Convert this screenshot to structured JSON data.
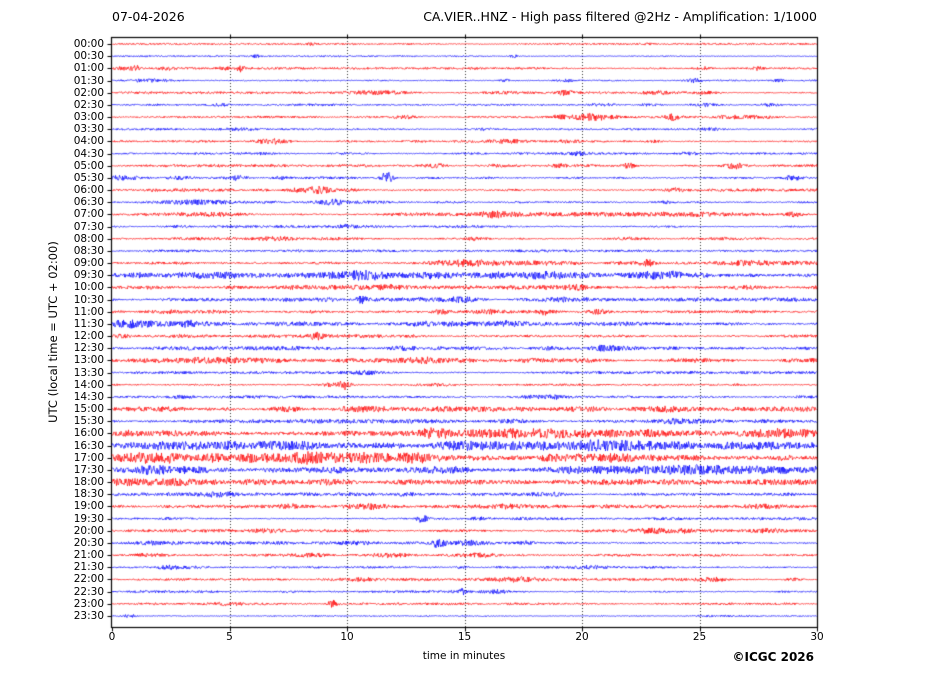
{
  "header": {
    "title_left": "07-04-2026",
    "title_right": "CA.VIER..HNZ - High pass filtered @2Hz - Amplification: 1/1000"
  },
  "axes": {
    "y_label": "UTC (local time = UTC + 02:00)",
    "x_label": "time in minutes",
    "x_ticks": [
      0,
      5,
      10,
      15,
      20,
      25,
      30
    ],
    "x_range": [
      0,
      30
    ],
    "gridlines_min": [
      5,
      10,
      15,
      20,
      25
    ]
  },
  "footer": {
    "copyright": "©ICGC 2026"
  },
  "colors": {
    "trace_red": "#ff0000",
    "trace_blue": "#0000ff",
    "grid": "rgba(0,0,0,0.8)",
    "frame": "#000000"
  },
  "chart_data": {
    "type": "line",
    "subtype": "helicorder-dayplot",
    "title": "CA.VIER..HNZ - High pass filtered @2Hz - Amplification: 1/1000",
    "date": "07-04-2026",
    "xlabel": "time in minutes",
    "ylabel": "UTC (local time = UTC + 02:00)",
    "minutes_per_row": 30,
    "x_range_minutes": [
      0,
      30
    ],
    "grid": "vertical dotted lines every 5 minutes",
    "legend": "none",
    "row_color_rule": "alternating red/blue per half-hour trace",
    "events_format": "[minute, peak_amplitude_px, spindle_sigma_min]",
    "rows": [
      {
        "time": "00:00",
        "color": "red",
        "base_amp": 0.5,
        "events": [
          [
            8.5,
            0.9,
            0.2
          ],
          [
            22.9,
            0.9,
            0.2
          ]
        ]
      },
      {
        "time": "00:30",
        "color": "blue",
        "base_amp": 0.5,
        "events": [
          [
            6.1,
            1.2,
            0.15
          ],
          [
            17.1,
            1.8,
            0.12
          ]
        ]
      },
      {
        "time": "01:00",
        "color": "red",
        "base_amp": 0.65,
        "events": [
          [
            0.5,
            1.6,
            0.3
          ],
          [
            1.0,
            3.0,
            0.12
          ],
          [
            2.3,
            1.5,
            0.3
          ],
          [
            4.8,
            1.2,
            0.2
          ],
          [
            5.5,
            3.2,
            0.12
          ],
          [
            25.2,
            1.3,
            0.2
          ],
          [
            27.5,
            1.6,
            0.15
          ]
        ]
      },
      {
        "time": "01:30",
        "color": "blue",
        "base_amp": 0.65,
        "events": [
          [
            1.5,
            1.5,
            0.6
          ],
          [
            16.7,
            1.2,
            0.2
          ],
          [
            19.3,
            1.5,
            0.25
          ],
          [
            24.8,
            1.9,
            0.2
          ],
          [
            28.4,
            1.3,
            0.2
          ]
        ]
      },
      {
        "time": "02:00",
        "color": "red",
        "base_amp": 0.65,
        "events": [
          [
            11.5,
            1.8,
            0.8
          ],
          [
            16.5,
            1.2,
            0.8
          ],
          [
            19.3,
            2.2,
            0.25
          ],
          [
            23.2,
            1.4,
            0.4
          ],
          [
            25.2,
            1.3,
            0.3
          ]
        ]
      },
      {
        "time": "02:30",
        "color": "blue",
        "base_amp": 0.65,
        "events": [
          [
            4.6,
            1.3,
            0.25
          ],
          [
            20.8,
            1.5,
            0.4
          ],
          [
            22.8,
            1.2,
            0.3
          ],
          [
            25.2,
            1.4,
            0.4
          ],
          [
            28.0,
            1.4,
            0.4
          ]
        ]
      },
      {
        "time": "03:00",
        "color": "red",
        "base_amp": 0.7,
        "events": [
          [
            12.5,
            1.2,
            0.3
          ],
          [
            19.0,
            1.3,
            0.3
          ],
          [
            20.4,
            2.8,
            0.7
          ],
          [
            23.8,
            3.2,
            0.2
          ],
          [
            27.0,
            1.5,
            0.8
          ]
        ]
      },
      {
        "time": "03:30",
        "color": "blue",
        "base_amp": 0.6,
        "events": [
          [
            5.4,
            1.1,
            0.4
          ],
          [
            16.0,
            1.0,
            0.4
          ],
          [
            25.5,
            1.0,
            0.3
          ]
        ]
      },
      {
        "time": "04:00",
        "color": "red",
        "base_amp": 0.7,
        "events": [
          [
            6.9,
            2.4,
            0.55
          ],
          [
            16.8,
            1.3,
            0.6
          ],
          [
            19.5,
            1.3,
            0.4
          ],
          [
            23.0,
            1.1,
            0.3
          ]
        ]
      },
      {
        "time": "04:30",
        "color": "blue",
        "base_amp": 0.65,
        "events": [
          [
            6.5,
            1.0,
            0.4
          ],
          [
            19.8,
            1.4,
            0.3
          ],
          [
            24.5,
            1.2,
            0.3
          ]
        ]
      },
      {
        "time": "05:00",
        "color": "red",
        "base_amp": 0.75,
        "events": [
          [
            13.7,
            2.2,
            0.35
          ],
          [
            16.4,
            1.4,
            0.3
          ],
          [
            19.0,
            1.4,
            0.3
          ],
          [
            22.0,
            2.6,
            0.2
          ],
          [
            26.5,
            3.0,
            0.35
          ]
        ]
      },
      {
        "time": "05:30",
        "color": "blue",
        "base_amp": 0.95,
        "events": [
          [
            0.5,
            2.2,
            0.5
          ],
          [
            3.0,
            1.4,
            0.5
          ],
          [
            5.3,
            2.2,
            0.3
          ],
          [
            7.2,
            1.4,
            0.3
          ],
          [
            11.7,
            6.5,
            0.18
          ],
          [
            29.0,
            2.0,
            0.3
          ]
        ]
      },
      {
        "time": "06:00",
        "color": "red",
        "base_amp": 0.85,
        "events": [
          [
            8.4,
            2.8,
            0.5
          ],
          [
            9.1,
            2.0,
            0.3
          ],
          [
            10.2,
            1.3,
            0.3
          ],
          [
            24.0,
            1.2,
            0.3
          ]
        ]
      },
      {
        "time": "06:30",
        "color": "blue",
        "base_amp": 0.85,
        "events": [
          [
            3.2,
            1.6,
            1.2
          ],
          [
            9.4,
            1.8,
            0.5
          ],
          [
            23.5,
            1.3,
            0.3
          ]
        ]
      },
      {
        "time": "07:00",
        "color": "red",
        "base_amp": 0.95,
        "events": [
          [
            4.2,
            1.3,
            1.0
          ],
          [
            16.2,
            1.8,
            0.4
          ],
          [
            20.0,
            1.3,
            2.5
          ],
          [
            25.0,
            1.3,
            2.5
          ],
          [
            29.0,
            2.2,
            0.25
          ]
        ]
      },
      {
        "time": "07:30",
        "color": "blue",
        "base_amp": 0.75,
        "events": [
          [
            10.0,
            1.3,
            0.25
          ]
        ]
      },
      {
        "time": "08:00",
        "color": "red",
        "base_amp": 0.85,
        "events": [
          [
            7.0,
            1.1,
            0.5
          ],
          [
            15.5,
            1.3,
            0.4
          ],
          [
            22.0,
            1.0,
            0.5
          ]
        ]
      },
      {
        "time": "08:30",
        "color": "blue",
        "base_amp": 0.75,
        "events": []
      },
      {
        "time": "09:00",
        "color": "red",
        "base_amp": 1.3,
        "events": [
          [
            15.0,
            1.5,
            1.0
          ],
          [
            22.8,
            2.6,
            0.25
          ],
          [
            27.0,
            1.2,
            0.5
          ]
        ]
      },
      {
        "time": "09:30",
        "color": "blue",
        "base_amp": 2.0,
        "events": [
          [
            10.5,
            2.0,
            0.8
          ],
          [
            14.0,
            2.0,
            0.6
          ],
          [
            18.2,
            3.0,
            1.3
          ],
          [
            24.0,
            1.5,
            0.8
          ]
        ]
      },
      {
        "time": "10:00",
        "color": "red",
        "base_amp": 1.4,
        "events": [
          [
            12.0,
            1.6,
            0.8
          ],
          [
            19.5,
            1.6,
            0.8
          ],
          [
            27.0,
            1.3,
            0.6
          ]
        ]
      },
      {
        "time": "10:30",
        "color": "blue",
        "base_amp": 1.2,
        "events": [
          [
            10.6,
            3.0,
            0.18
          ],
          [
            14.5,
            1.3,
            0.5
          ],
          [
            19.0,
            1.3,
            0.5
          ]
        ]
      },
      {
        "time": "11:00",
        "color": "red",
        "base_amp": 1.3,
        "events": [
          [
            14.0,
            2.6,
            0.25
          ],
          [
            15.9,
            1.6,
            0.3
          ],
          [
            18.4,
            1.8,
            0.3
          ],
          [
            20.6,
            2.0,
            0.3
          ]
        ]
      },
      {
        "time": "11:30",
        "color": "blue",
        "base_amp": 1.3,
        "events": [
          [
            0.7,
            2.6,
            0.8
          ],
          [
            3.3,
            2.0,
            0.25
          ],
          [
            8.0,
            1.5,
            1.0
          ],
          [
            13.8,
            1.8,
            1.2
          ],
          [
            16.5,
            1.5,
            0.5
          ]
        ]
      },
      {
        "time": "12:00",
        "color": "red",
        "base_amp": 0.85,
        "events": [
          [
            0.4,
            1.6,
            0.3
          ],
          [
            2.9,
            1.3,
            0.4
          ],
          [
            8.7,
            3.5,
            0.18
          ],
          [
            10.5,
            1.3,
            1.5
          ]
        ]
      },
      {
        "time": "12:30",
        "color": "blue",
        "base_amp": 1.1,
        "events": [
          [
            12.4,
            1.5,
            0.4
          ],
          [
            18.6,
            1.7,
            0.5
          ],
          [
            21.0,
            1.8,
            0.4
          ]
        ]
      },
      {
        "time": "13:00",
        "color": "red",
        "base_amp": 1.25,
        "events": [
          [
            4.5,
            1.5,
            1.5
          ],
          [
            13.2,
            1.8,
            0.5
          ],
          [
            20.0,
            1.4,
            0.8
          ]
        ]
      },
      {
        "time": "13:30",
        "color": "blue",
        "base_amp": 0.8,
        "events": [
          [
            10.9,
            1.2,
            0.4
          ]
        ]
      },
      {
        "time": "14:00",
        "color": "red",
        "base_amp": 0.9,
        "events": [
          [
            9.3,
            1.6,
            0.4
          ],
          [
            9.9,
            4.2,
            0.18
          ],
          [
            14.0,
            1.2,
            0.5
          ]
        ]
      },
      {
        "time": "14:30",
        "color": "blue",
        "base_amp": 0.8,
        "events": [
          [
            2.9,
            1.1,
            0.4
          ],
          [
            17.9,
            1.4,
            0.6
          ],
          [
            19.0,
            1.2,
            0.4
          ]
        ]
      },
      {
        "time": "15:00",
        "color": "red",
        "base_amp": 1.4,
        "events": [
          [
            7.3,
            2.0,
            0.4
          ],
          [
            10.7,
            2.2,
            0.8
          ],
          [
            14.5,
            1.6,
            2.0
          ],
          [
            20.3,
            1.8,
            0.6
          ],
          [
            23.5,
            1.4,
            0.8
          ]
        ]
      },
      {
        "time": "15:30",
        "color": "blue",
        "base_amp": 1.15,
        "events": [
          [
            16.8,
            1.6,
            0.6
          ],
          [
            23.9,
            1.6,
            0.6
          ],
          [
            28.0,
            1.4,
            0.5
          ]
        ]
      },
      {
        "time": "16:00",
        "color": "red",
        "base_amp": 2.2,
        "events": [
          [
            2.5,
            1.5,
            1.5
          ],
          [
            13.7,
            2.0,
            0.4
          ],
          [
            17.8,
            1.8,
            1.2
          ],
          [
            28.0,
            1.5,
            1.0
          ]
        ]
      },
      {
        "time": "16:30",
        "color": "blue",
        "base_amp": 2.5,
        "events": [
          [
            7.5,
            1.5,
            1.5
          ],
          [
            14.5,
            1.5,
            1.0
          ],
          [
            21.0,
            1.5,
            1.2
          ],
          [
            27.0,
            1.3,
            1.0
          ]
        ]
      },
      {
        "time": "17:00",
        "color": "red",
        "base_amp": 2.9,
        "events": [
          [
            1.5,
            1.8,
            1.0
          ],
          [
            5.0,
            1.8,
            1.8
          ],
          [
            8.0,
            1.5,
            1.0
          ],
          [
            12.0,
            1.3,
            1.5
          ]
        ]
      },
      {
        "time": "17:30",
        "color": "blue",
        "base_amp": 2.3,
        "events": [
          [
            2.0,
            1.5,
            1.0
          ],
          [
            9.0,
            1.4,
            1.5
          ],
          [
            13.5,
            1.8,
            0.8
          ],
          [
            24.5,
            1.4,
            1.0
          ]
        ]
      },
      {
        "time": "18:00",
        "color": "red",
        "base_amp": 1.7,
        "events": [
          [
            0.5,
            2.0,
            0.8
          ],
          [
            2.7,
            2.0,
            0.8
          ],
          [
            9.5,
            1.4,
            0.6
          ],
          [
            12.3,
            1.5,
            0.4
          ]
        ]
      },
      {
        "time": "18:30",
        "color": "blue",
        "base_amp": 1.0,
        "events": [
          [
            4.5,
            1.4,
            0.5
          ],
          [
            12.5,
            1.2,
            0.5
          ],
          [
            18.5,
            1.2,
            0.6
          ]
        ]
      },
      {
        "time": "19:00",
        "color": "red",
        "base_amp": 1.0,
        "events": [
          [
            7.7,
            1.4,
            0.4
          ],
          [
            11.0,
            2.0,
            0.6
          ],
          [
            16.8,
            1.4,
            0.5
          ],
          [
            27.8,
            1.3,
            0.5
          ]
        ]
      },
      {
        "time": "19:30",
        "color": "blue",
        "base_amp": 0.85,
        "events": [
          [
            13.2,
            4.0,
            0.18
          ],
          [
            15.5,
            1.2,
            0.4
          ]
        ]
      },
      {
        "time": "20:00",
        "color": "red",
        "base_amp": 0.85,
        "events": [
          [
            6.5,
            1.6,
            0.35
          ],
          [
            23.0,
            2.0,
            0.5
          ],
          [
            24.3,
            1.5,
            0.3
          ],
          [
            28.0,
            1.4,
            0.4
          ]
        ]
      },
      {
        "time": "20:30",
        "color": "blue",
        "base_amp": 0.95,
        "events": [
          [
            1.8,
            1.8,
            0.8
          ],
          [
            10.5,
            1.3,
            0.4
          ],
          [
            13.9,
            3.6,
            0.2
          ],
          [
            15.2,
            1.6,
            0.35
          ],
          [
            17.7,
            1.4,
            0.25
          ]
        ]
      },
      {
        "time": "21:00",
        "color": "red",
        "base_amp": 0.8,
        "events": [
          [
            1.5,
            1.4,
            0.4
          ],
          [
            8.7,
            1.6,
            0.5
          ],
          [
            11.8,
            1.7,
            0.6
          ],
          [
            15.6,
            1.3,
            0.4
          ]
        ]
      },
      {
        "time": "21:30",
        "color": "blue",
        "base_amp": 0.7,
        "events": [
          [
            2.5,
            1.2,
            0.8
          ],
          [
            14.9,
            1.5,
            0.2
          ],
          [
            20.5,
            1.1,
            0.5
          ]
        ]
      },
      {
        "time": "22:00",
        "color": "red",
        "base_amp": 0.75,
        "events": [
          [
            10.7,
            1.3,
            0.4
          ],
          [
            17.2,
            2.0,
            0.9
          ],
          [
            25.6,
            1.4,
            0.4
          ],
          [
            29.0,
            1.2,
            0.3
          ]
        ]
      },
      {
        "time": "22:30",
        "color": "blue",
        "base_amp": 0.7,
        "events": [
          [
            14.85,
            3.0,
            0.15
          ],
          [
            16.4,
            1.2,
            0.3
          ]
        ]
      },
      {
        "time": "23:00",
        "color": "red",
        "base_amp": 0.65,
        "events": [
          [
            5.0,
            1.0,
            0.4
          ],
          [
            9.4,
            3.2,
            0.15
          ]
        ]
      },
      {
        "time": "23:30",
        "color": "blue",
        "base_amp": 0.55,
        "events": [
          [
            0.77,
            1.5,
            0.2
          ]
        ]
      }
    ]
  }
}
